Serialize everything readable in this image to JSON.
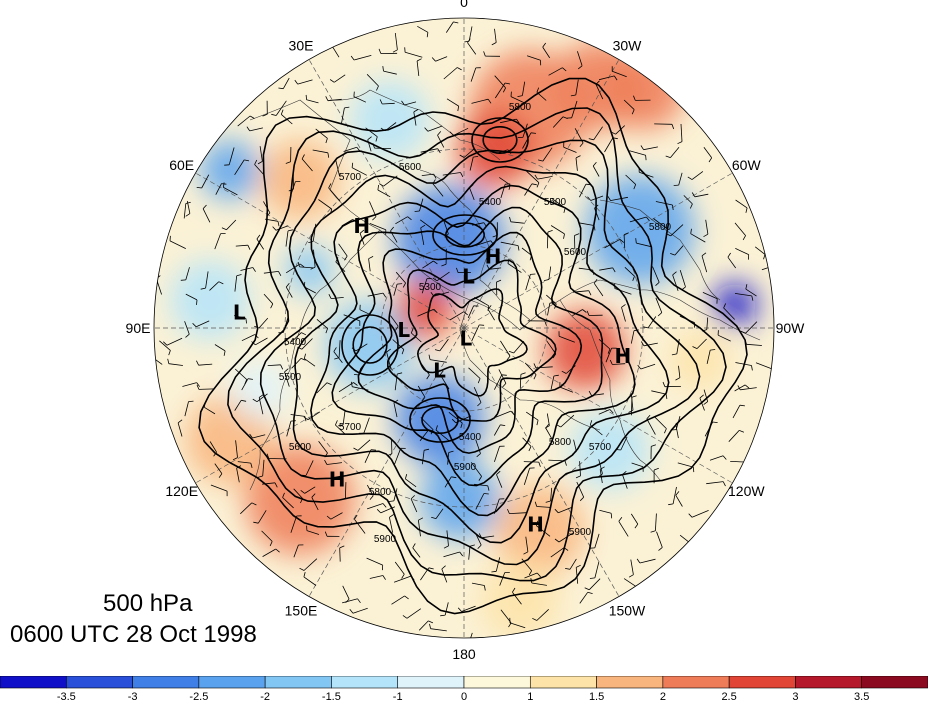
{
  "map": {
    "level_label": "500 hPa",
    "time_label": "0600 UTC 28 Oct 1998",
    "longitude_labels": [
      {
        "text": "0",
        "lon": 0
      },
      {
        "text": "30W",
        "lon": -30
      },
      {
        "text": "60W",
        "lon": -60
      },
      {
        "text": "90W",
        "lon": -90
      },
      {
        "text": "120W",
        "lon": -120
      },
      {
        "text": "150W",
        "lon": -150
      },
      {
        "text": "180",
        "lon": 180
      },
      {
        "text": "150E",
        "lon": 150
      },
      {
        "text": "120E",
        "lon": 120
      },
      {
        "text": "90E",
        "lon": 90
      },
      {
        "text": "60E",
        "lon": 60
      },
      {
        "text": "30E",
        "lon": 30
      }
    ],
    "pressure_centers": [
      {
        "type": "H",
        "lon": -22,
        "lat": 62
      },
      {
        "type": "H",
        "lon": 45,
        "lat": 40
      },
      {
        "type": "H",
        "lon": -100,
        "lat": 35
      },
      {
        "type": "H",
        "lon": 140,
        "lat": 25
      },
      {
        "type": "H",
        "lon": -160,
        "lat": 22
      },
      {
        "type": "L",
        "lon": -5,
        "lat": 71
      },
      {
        "type": "L",
        "lon": 92,
        "lat": 68
      },
      {
        "type": "L",
        "lon": 150,
        "lat": 72
      },
      {
        "type": "L",
        "lon": -170,
        "lat": 86
      },
      {
        "type": "L",
        "lon": 86,
        "lat": 18
      }
    ],
    "contour_labels": [
      "5900",
      "5800",
      "5700",
      "5600",
      "5500",
      "5400",
      "5300",
      "5400",
      "5500",
      "5600",
      "5700",
      "5800",
      "5900",
      "5800",
      "5700",
      "5600",
      "5400",
      "5800",
      "5900"
    ],
    "colors": {
      "background": "#ffffff",
      "contour": "#000000",
      "graticule": "#555555",
      "coast": "#333333"
    }
  },
  "colorbar": {
    "tick_labels": [
      "-3.5",
      "-3",
      "-2.5",
      "-2",
      "-1.5",
      "-1",
      "0",
      "1",
      "1.5",
      "2",
      "2.5",
      "3",
      "3.5"
    ],
    "colors": [
      "#1010c8",
      "#2a4fd8",
      "#3f7fe6",
      "#5aa2ee",
      "#82c6f4",
      "#b4e4fa",
      "#dff3fb",
      "#fdf8dc",
      "#fde3a8",
      "#f8b57e",
      "#ee7c58",
      "#e04535",
      "#b5182b",
      "#8b0a1f"
    ]
  }
}
